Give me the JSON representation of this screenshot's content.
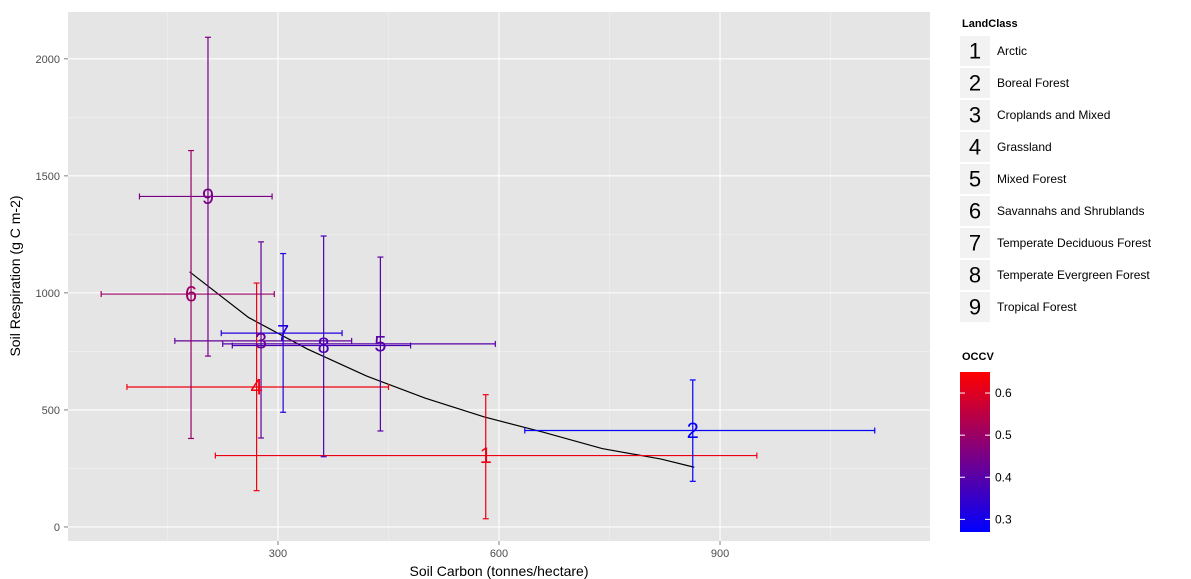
{
  "chart_data": {
    "type": "scatter",
    "xlabel": "Soil Carbon (tonnes/hectare)",
    "ylabel": "Soil Respiration (g C m-2)",
    "xlim": [
      15,
      1185
    ],
    "ylim": [
      -60,
      2200
    ],
    "x_ticks": [
      300,
      600,
      900
    ],
    "y_ticks": [
      0,
      500,
      1000,
      1500,
      2000
    ],
    "grid": true,
    "points": [
      {
        "label": "1",
        "class": "Arctic",
        "x": 582,
        "y": 305,
        "xmin": 215,
        "xmax": 950,
        "ymin": 35,
        "ymax": 565,
        "occv": 0.62
      },
      {
        "label": "2",
        "class": "Boreal Forest",
        "x": 863,
        "y": 412,
        "xmin": 635,
        "xmax": 1110,
        "ymin": 195,
        "ymax": 628,
        "occv": 0.28
      },
      {
        "label": "3",
        "class": "Croplands and Mixed",
        "x": 277,
        "y": 795,
        "xmin": 160,
        "xmax": 400,
        "ymin": 380,
        "ymax": 1218,
        "occv": 0.42
      },
      {
        "label": "4",
        "class": "Grassland",
        "x": 271,
        "y": 598,
        "xmin": 95,
        "xmax": 450,
        "ymin": 155,
        "ymax": 1042,
        "occv": 0.63
      },
      {
        "label": "5",
        "class": "Mixed Forest",
        "x": 439,
        "y": 782,
        "xmin": 225,
        "xmax": 595,
        "ymin": 410,
        "ymax": 1153,
        "occv": 0.4
      },
      {
        "label": "6",
        "class": "Savannahs and Shrublands",
        "x": 182,
        "y": 995,
        "xmin": 60,
        "xmax": 295,
        "ymin": 378,
        "ymax": 1608,
        "occv": 0.5
      },
      {
        "label": "7",
        "class": "Temperate Deciduous Forest",
        "x": 307,
        "y": 828,
        "xmin": 223,
        "xmax": 387,
        "ymin": 490,
        "ymax": 1168,
        "occv": 0.32
      },
      {
        "label": "8",
        "class": "Temperate Evergreen Forest",
        "x": 362,
        "y": 775,
        "xmin": 238,
        "xmax": 480,
        "ymin": 300,
        "ymax": 1243,
        "occv": 0.38
      },
      {
        "label": "9",
        "class": "Tropical Forest",
        "x": 205,
        "y": 1412,
        "xmin": 112,
        "xmax": 292,
        "ymin": 730,
        "ymax": 2092,
        "occv": 0.45
      }
    ],
    "trend_line": {
      "x": [
        180,
        260,
        340,
        420,
        500,
        580,
        660,
        740,
        820,
        865
      ],
      "y": [
        1090,
        895,
        760,
        645,
        550,
        470,
        405,
        335,
        290,
        255
      ]
    }
  },
  "legend_shape": {
    "title": "LandClass",
    "items": [
      {
        "key": "1",
        "label": "Arctic"
      },
      {
        "key": "2",
        "label": "Boreal Forest"
      },
      {
        "key": "3",
        "label": "Croplands and Mixed"
      },
      {
        "key": "4",
        "label": "Grassland"
      },
      {
        "key": "5",
        "label": "Mixed Forest"
      },
      {
        "key": "6",
        "label": "Savannahs and Shrublands"
      },
      {
        "key": "7",
        "label": "Temperate Deciduous Forest"
      },
      {
        "key": "8",
        "label": "Temperate Evergreen Forest"
      },
      {
        "key": "9",
        "label": "Tropical Forest"
      }
    ]
  },
  "legend_color": {
    "title": "OCCV",
    "min": 0.27,
    "max": 0.65,
    "ticks": [
      "0.3",
      "0.4",
      "0.5",
      "0.6"
    ],
    "low_color": "#0000ff",
    "high_color": "#ff0000"
  },
  "colors": {
    "panel": "#e5e5e5",
    "grid_major": "#ffffff",
    "grid_minor": "#f2f2f2",
    "trend": "#000000"
  }
}
